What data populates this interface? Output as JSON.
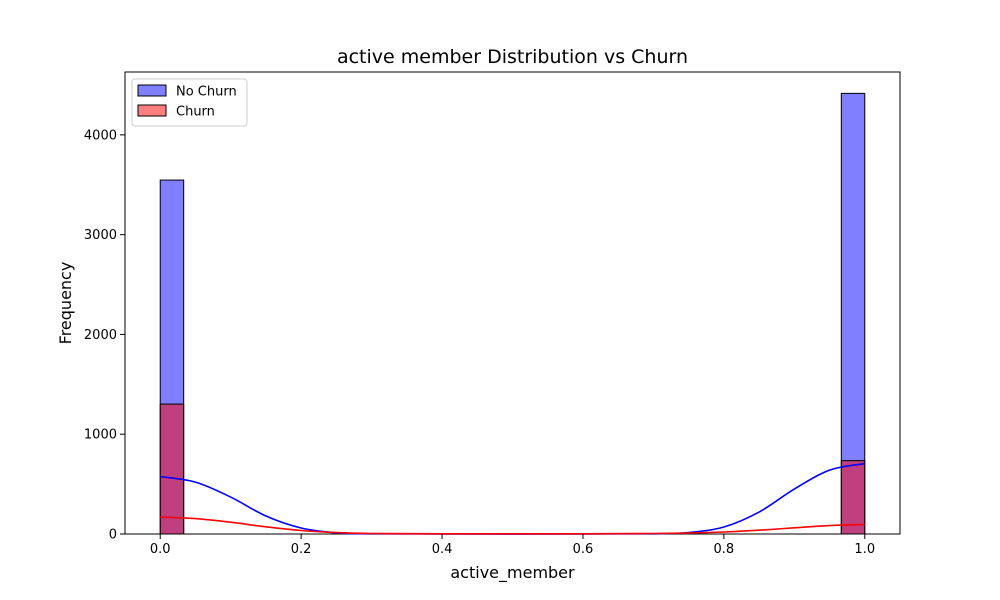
{
  "chart_data": {
    "type": "bar",
    "title": "active member Distribution vs Churn",
    "xlabel": "active_member",
    "ylabel": "Frequency",
    "xlim": [
      -0.05,
      1.05
    ],
    "ylim": [
      0,
      4630
    ],
    "xticks": [
      0.0,
      0.2,
      0.4,
      0.6,
      0.8,
      1.0
    ],
    "xtick_labels": [
      "0.0",
      "0.2",
      "0.4",
      "0.6",
      "0.8",
      "1.0"
    ],
    "yticks": [
      0,
      1000,
      2000,
      3000,
      4000
    ],
    "ytick_labels": [
      "0",
      "1000",
      "2000",
      "3000",
      "4000"
    ],
    "grid": false,
    "legend_position": "top-left",
    "series": [
      {
        "name": "No Churn",
        "color": "#0000ff",
        "bins": [
          {
            "x0": 0.0,
            "x1": 0.0333,
            "count": 3547
          },
          {
            "x0": 0.9667,
            "x1": 1.0,
            "count": 4416
          }
        ],
        "kde": [
          {
            "x": 0.0,
            "y": 575
          },
          {
            "x": 0.05,
            "y": 520
          },
          {
            "x": 0.1,
            "y": 370
          },
          {
            "x": 0.15,
            "y": 180
          },
          {
            "x": 0.2,
            "y": 60
          },
          {
            "x": 0.25,
            "y": 12
          },
          {
            "x": 0.3,
            "y": 2
          },
          {
            "x": 0.4,
            "y": 0
          },
          {
            "x": 0.6,
            "y": 0
          },
          {
            "x": 0.7,
            "y": 2
          },
          {
            "x": 0.75,
            "y": 15
          },
          {
            "x": 0.8,
            "y": 70
          },
          {
            "x": 0.85,
            "y": 220
          },
          {
            "x": 0.9,
            "y": 450
          },
          {
            "x": 0.95,
            "y": 640
          },
          {
            "x": 1.0,
            "y": 705
          }
        ]
      },
      {
        "name": "Churn",
        "color": "#ff0000",
        "bins": [
          {
            "x0": 0.0,
            "x1": 0.0333,
            "count": 1302
          },
          {
            "x0": 0.9667,
            "x1": 1.0,
            "count": 735
          }
        ],
        "kde": [
          {
            "x": 0.0,
            "y": 170
          },
          {
            "x": 0.05,
            "y": 155
          },
          {
            "x": 0.1,
            "y": 118
          },
          {
            "x": 0.15,
            "y": 72
          },
          {
            "x": 0.2,
            "y": 35
          },
          {
            "x": 0.25,
            "y": 14
          },
          {
            "x": 0.3,
            "y": 5
          },
          {
            "x": 0.4,
            "y": 2
          },
          {
            "x": 0.6,
            "y": 2
          },
          {
            "x": 0.7,
            "y": 5
          },
          {
            "x": 0.75,
            "y": 10
          },
          {
            "x": 0.8,
            "y": 20
          },
          {
            "x": 0.85,
            "y": 38
          },
          {
            "x": 0.9,
            "y": 62
          },
          {
            "x": 0.95,
            "y": 85
          },
          {
            "x": 1.0,
            "y": 95
          }
        ]
      }
    ]
  }
}
